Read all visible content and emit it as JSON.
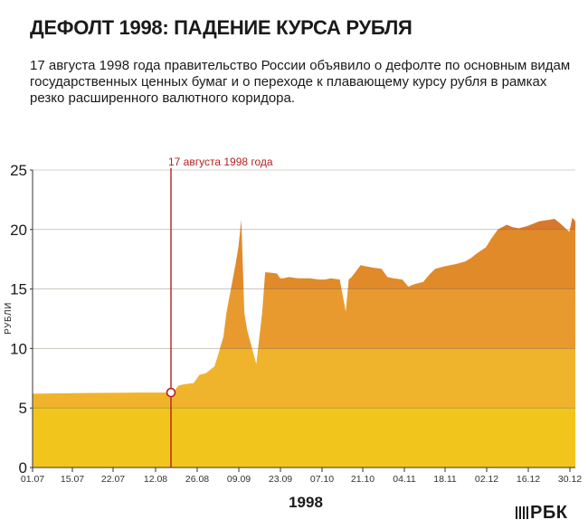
{
  "header": {
    "title": "ДЕФОЛТ 1998: ПАДЕНИЕ КУРСА РУБЛЯ",
    "description": "17 августа 1998 года правительство России объявило о дефолте по основным видам государственных ценных бумаг и о переходе к плавающему курсу рубля в рамках резко расширенного валютного коридора."
  },
  "brand": {
    "name": "РБК"
  },
  "colors": {
    "band_0_5": "#f2c51c",
    "band_5_10": "#f0b42c",
    "band_10_15": "#e99a2e",
    "band_15_20": "#e18a2a",
    "band_20_25": "#d9772a",
    "grid": "#6a5a40",
    "annotation": "#b22222"
  },
  "chart_data": {
    "type": "area",
    "title": "ДЕФОЛТ 1998: ПАДЕНИЕ КУРСА РУБЛЯ",
    "xlabel": "1998",
    "ylabel": "РУБЛИ",
    "ylim": [
      0,
      25
    ],
    "yticks": [
      "0",
      "5",
      "10",
      "15",
      "20",
      "25"
    ],
    "xticks": [
      "01.07",
      "15.07",
      "22.07",
      "12.08",
      "26.08",
      "09.09",
      "23.09",
      "07.10",
      "21.10",
      "04.11",
      "18.11",
      "02.12",
      "16.12",
      "30.12"
    ],
    "grid": true,
    "legend": "none",
    "annotation": {
      "label": "17 августа 1998 года",
      "date": "17.08",
      "value": 6.3
    },
    "series": [
      {
        "x": [
          "01.07",
          "15.07",
          "22.07",
          "29.07",
          "05.08",
          "12.08",
          "17.08",
          "19.08",
          "21.08",
          "24.08",
          "26.08",
          "28.08",
          "31.08",
          "01.09",
          "03.09",
          "04.09",
          "07.09",
          "08.09",
          "09.09",
          "10.09",
          "11.09",
          "14.09",
          "16.09",
          "17.09",
          "18.09",
          "21.09",
          "22.09",
          "23.09",
          "25.09",
          "28.09",
          "30.09",
          "02.10",
          "05.10",
          "07.10",
          "09.10",
          "12.10",
          "14.10",
          "15.10",
          "16.10",
          "19.10",
          "21.10",
          "23.10",
          "26.10",
          "28.10",
          "30.10",
          "02.11",
          "04.11",
          "06.11",
          "09.11",
          "11.11",
          "13.11",
          "16.11",
          "18.11",
          "20.11",
          "23.11",
          "25.11",
          "27.11",
          "30.11",
          "02.12",
          "04.12",
          "07.12",
          "09.12",
          "11.12",
          "14.12",
          "16.12",
          "18.12",
          "21.12",
          "23.12",
          "25.12",
          "28.12",
          "29.12",
          "30.12"
        ],
        "values": [
          6.2,
          6.25,
          6.27,
          6.28,
          6.3,
          6.3,
          6.3,
          6.9,
          7.0,
          7.1,
          7.8,
          7.9,
          8.5,
          9.3,
          11.0,
          13.0,
          17.0,
          18.5,
          20.8,
          13.0,
          11.5,
          8.7,
          13.0,
          16.4,
          16.4,
          16.3,
          15.9,
          15.9,
          16.0,
          15.9,
          15.9,
          15.9,
          15.8,
          15.8,
          15.9,
          15.8,
          13.1,
          15.8,
          16.0,
          17.0,
          16.9,
          16.8,
          16.7,
          16.0,
          15.9,
          15.8,
          15.2,
          15.4,
          15.6,
          16.2,
          16.7,
          16.9,
          17.0,
          17.1,
          17.3,
          17.6,
          18.0,
          18.5,
          19.3,
          20.0,
          20.4,
          20.2,
          20.1,
          20.3,
          20.5,
          20.7,
          20.8,
          20.9,
          20.5,
          19.8,
          21.0,
          20.7
        ]
      }
    ]
  }
}
